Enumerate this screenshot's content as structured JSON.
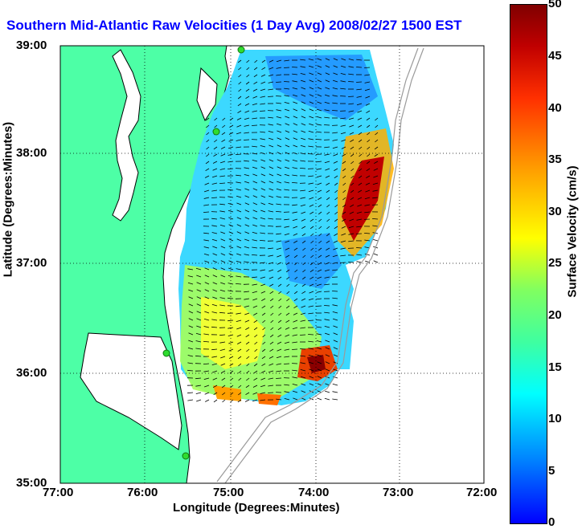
{
  "title": "Southern Mid-Atlantic Raw Velocities (1 Day Avg) 2008/02/27 1500 EST",
  "x_axis_label": "Longitude (Degrees:Minutes)",
  "y_axis_label": "Latitude (Degrees:Minutes)",
  "x_ticks": [
    "77:00",
    "76:00",
    "75:00",
    "74:00",
    "73:00",
    "72:00"
  ],
  "y_ticks": [
    "39:00",
    "38:00",
    "37:00",
    "36:00",
    "35:00"
  ],
  "colorbar": {
    "label": "Surface Velocity (cm/s)",
    "ticks": [
      "50",
      "45",
      "40",
      "35",
      "30",
      "25",
      "20",
      "15",
      "10",
      "5",
      "0"
    ],
    "min": 0,
    "max": 50
  },
  "colors": {
    "land": "#4dffa6",
    "title": "#0000ff",
    "coast": "#000000",
    "bathymetry": "#9a9a9a",
    "station": "#2fdc2f"
  },
  "map": {
    "lon_range": [
      -77,
      -72
    ],
    "lat_range": [
      35,
      39
    ],
    "grid": "dotted",
    "stations": 5
  }
}
